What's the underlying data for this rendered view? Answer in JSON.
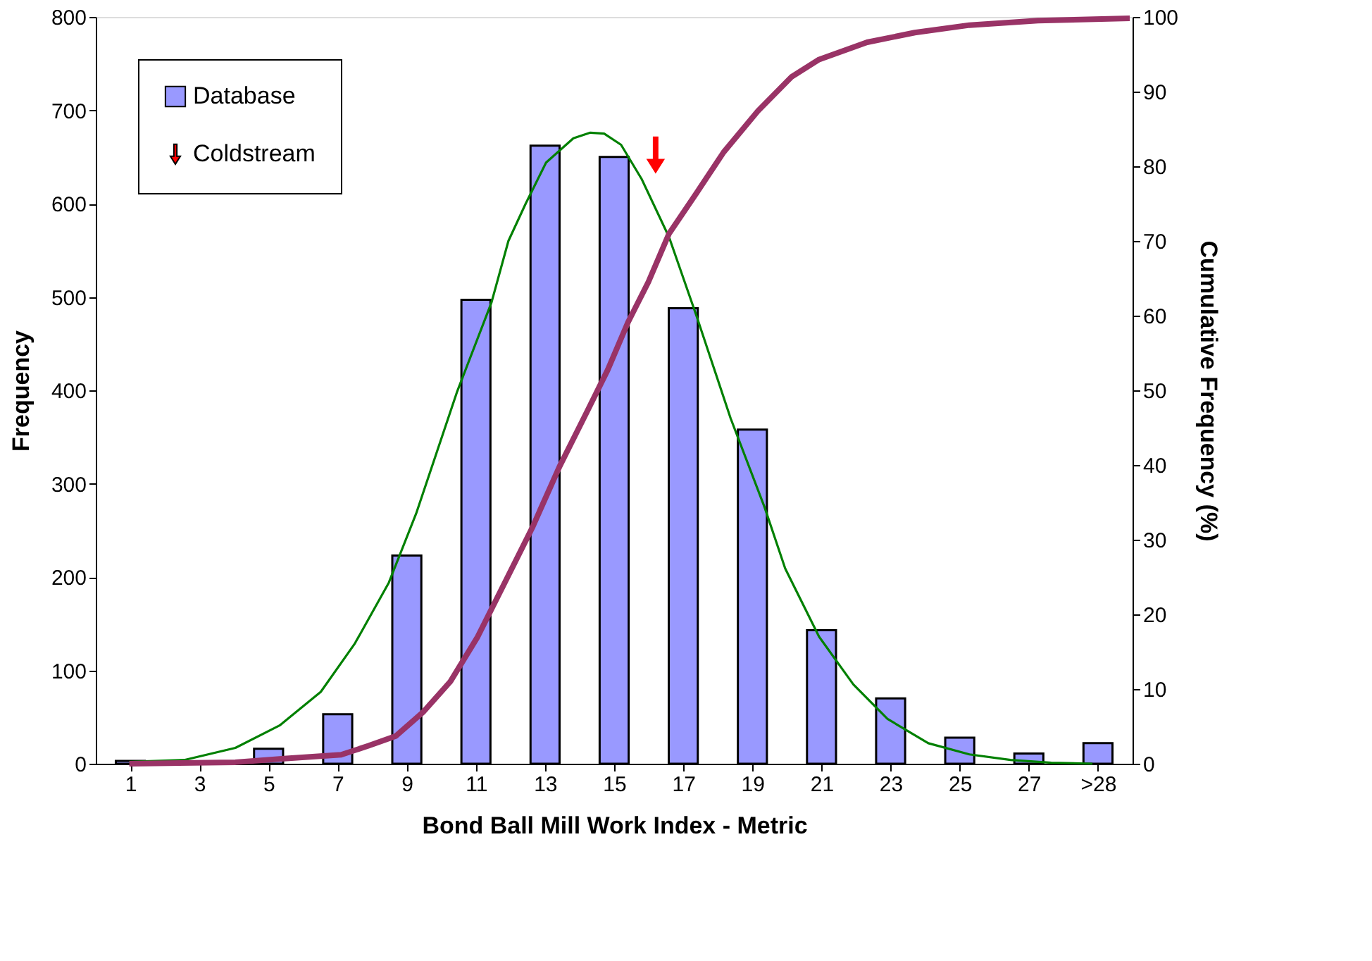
{
  "chart_data": {
    "type": "bar",
    "xlabel": "Bond Ball Mill Work Index - Metric",
    "ylabel": "Frequency",
    "y2label": "Cumulative Frequency (%)",
    "xlim": [
      0,
      30
    ],
    "xticks": [
      1,
      3,
      5,
      7,
      9,
      11,
      13,
      15,
      17,
      19,
      21,
      23,
      25,
      27,
      {
        "value": 29,
        "label": ">28"
      }
    ],
    "ylim": [
      0,
      800
    ],
    "yticks": [
      0,
      100,
      200,
      300,
      400,
      500,
      600,
      700,
      800
    ],
    "y2lim": [
      0,
      100
    ],
    "y2ticks": [
      0,
      10,
      20,
      30,
      40,
      50,
      60,
      70,
      80,
      90,
      100
    ],
    "legend": "top left",
    "grid": false,
    "series": [
      {
        "name": "Database",
        "color": "#9999ff",
        "x": [
          1,
          3,
          5,
          7,
          9,
          11,
          13,
          15,
          17,
          19,
          21,
          23,
          25,
          27,
          29
        ],
        "values": [
          3,
          1,
          16,
          53,
          223,
          497,
          662,
          650,
          488,
          358,
          143,
          70,
          28,
          11,
          22
        ]
      },
      {
        "type": "line",
        "color": "#008000",
        "x": [
          0.97,
          2.56,
          4.04,
          5.32,
          6.51,
          7.5,
          8.48,
          9.27,
          10.46,
          11.45,
          11.94,
          12.44,
          13.03,
          13.82,
          14.31,
          14.71,
          15.2,
          15.8,
          16.59,
          17.38,
          18.37,
          19.35,
          19.95,
          20.93,
          21.92,
          22.91,
          24.09,
          25.28,
          26.47,
          27.65,
          28.84
        ],
        "values": [
          2,
          4,
          17,
          41,
          77,
          129,
          194,
          268,
          399,
          494,
          560,
          600,
          644,
          670,
          676,
          675,
          663,
          626,
          564,
          480,
          370,
          275,
          209,
          136,
          85,
          48,
          22,
          10,
          4,
          1,
          0
        ]
      },
      {
        "type": "line",
        "color": "#993366",
        "axis": "y2",
        "x": [
          0.97,
          4.04,
          5.52,
          7.1,
          7.89,
          8.68,
          9.47,
          10.26,
          11.05,
          11.84,
          12.63,
          13.42,
          14.22,
          14.81,
          15.4,
          15.99,
          16.59,
          17.38,
          18.17,
          19.16,
          20.14,
          20.93,
          22.32,
          23.7,
          25.28,
          27.26,
          29.92
        ],
        "values": [
          0,
          0.2,
          0.7,
          1.2,
          2.4,
          3.7,
          6.9,
          11,
          17,
          24.3,
          31.6,
          39.8,
          47.2,
          52.7,
          59.1,
          64.5,
          71,
          76.4,
          81.9,
          87.4,
          92,
          94.3,
          96.6,
          97.9,
          98.9,
          99.5,
          99.8
        ]
      },
      {
        "type": "scatter",
        "name": "Coldstream",
        "color": "#ff0000",
        "x": [
          16.2
        ],
        "values": [
          652
        ]
      }
    ]
  }
}
